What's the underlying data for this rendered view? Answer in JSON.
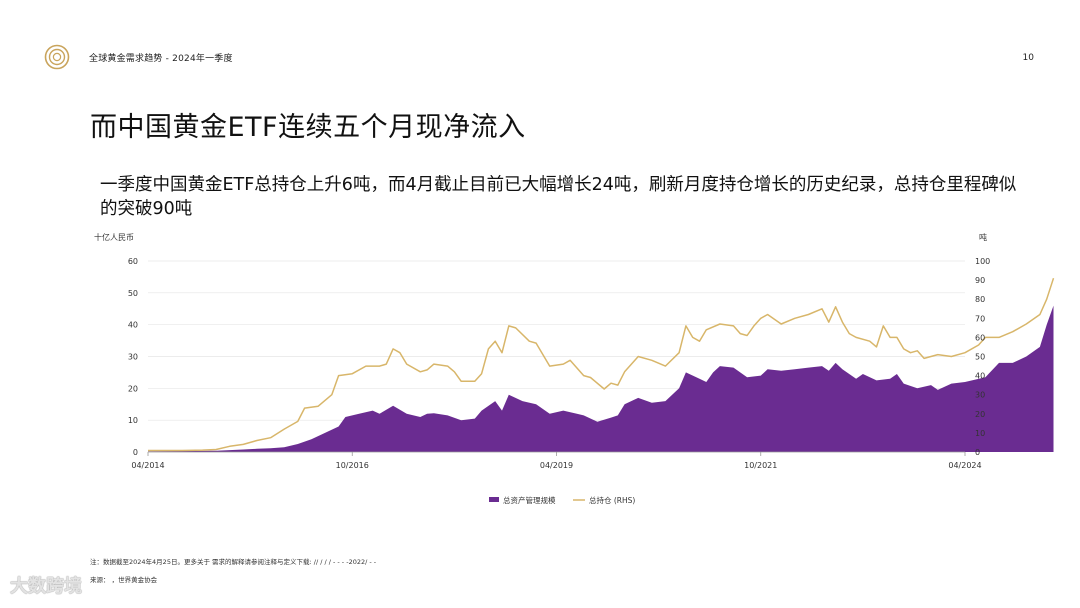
{
  "header": {
    "title": "全球黄金需求趋势 - 2024年一季度",
    "page_number": "10"
  },
  "slide": {
    "title": "而中国黄金ETF连续五个月现净流入",
    "subtitle": "一季度中国黄金ETF总持仓上升6吨，而4月截止目前已大幅增长24吨，刷新月度持仓增长的历史纪录，总持仓里程碑似的突破90吨"
  },
  "colors": {
    "aum": "#6a2c91",
    "holdings": "#d8b66a",
    "axis": "#999999",
    "grid": "#e6e6e6",
    "gold_logo": "#c9a45c"
  },
  "chart_data": {
    "type": "area",
    "left_unit": "十亿人民币",
    "right_unit": "吨",
    "ylim_left": [
      0,
      60
    ],
    "ylim_right": [
      0,
      100
    ],
    "yticks_left": [
      0,
      10,
      20,
      30,
      40,
      50,
      60
    ],
    "yticks_right": [
      0,
      10,
      20,
      30,
      40,
      50,
      60,
      70,
      80,
      90,
      100
    ],
    "x_tick_labels": [
      "04/2014",
      "10/2016",
      "04/2019",
      "10/2021",
      "04/2024"
    ],
    "x_tick_months": [
      0,
      30,
      60,
      90,
      120
    ],
    "grid": "horizontal",
    "legend_position": "bottom",
    "series": [
      {
        "name": "总资产管理规模",
        "axis": "left",
        "style": "area",
        "points": [
          [
            0,
            0.2
          ],
          [
            5,
            0.3
          ],
          [
            10,
            0.4
          ],
          [
            14,
            0.8
          ],
          [
            16,
            1
          ],
          [
            18,
            1.2
          ],
          [
            20,
            1.5
          ],
          [
            22,
            2.5
          ],
          [
            24,
            4
          ],
          [
            26,
            6
          ],
          [
            28,
            8
          ],
          [
            29,
            11
          ],
          [
            31,
            12
          ],
          [
            33,
            13
          ],
          [
            34,
            12
          ],
          [
            36,
            14.5
          ],
          [
            38,
            12
          ],
          [
            40,
            11
          ],
          [
            41,
            12
          ],
          [
            42,
            12.2
          ],
          [
            44,
            11.5
          ],
          [
            46,
            10
          ],
          [
            48,
            10.5
          ],
          [
            49,
            13
          ],
          [
            51,
            16
          ],
          [
            52,
            13
          ],
          [
            53,
            18
          ],
          [
            55,
            16
          ],
          [
            57,
            15
          ],
          [
            59,
            12
          ],
          [
            61,
            13
          ],
          [
            63,
            12
          ],
          [
            64,
            11.5
          ],
          [
            66,
            9.5
          ],
          [
            68,
            10.8
          ],
          [
            69,
            11.5
          ],
          [
            70,
            15
          ],
          [
            72,
            17
          ],
          [
            74,
            15.5
          ],
          [
            76,
            16
          ],
          [
            78,
            20
          ],
          [
            79,
            25
          ],
          [
            81,
            23
          ],
          [
            82,
            22
          ],
          [
            83,
            25
          ],
          [
            84,
            27
          ],
          [
            86,
            26.5
          ],
          [
            88,
            23.5
          ],
          [
            90,
            24
          ],
          [
            91,
            26
          ],
          [
            93,
            25.5
          ],
          [
            95,
            26
          ],
          [
            97,
            26.5
          ],
          [
            99,
            27
          ],
          [
            100,
            25.5
          ],
          [
            101,
            28
          ],
          [
            102,
            26
          ],
          [
            104,
            23
          ],
          [
            105,
            24.5
          ],
          [
            107,
            22.5
          ],
          [
            109,
            23
          ],
          [
            110,
            24.5
          ],
          [
            111,
            21.5
          ],
          [
            113,
            20
          ],
          [
            115,
            21
          ],
          [
            116,
            19.5
          ],
          [
            118,
            21.5
          ],
          [
            120,
            22
          ],
          [
            123,
            23.5
          ],
          [
            125,
            28
          ],
          [
            127,
            28
          ],
          [
            129,
            30
          ],
          [
            131,
            33
          ],
          [
            132,
            40
          ],
          [
            133,
            46
          ]
        ]
      },
      {
        "name": "总持仓 (RHS)",
        "axis": "right",
        "style": "line",
        "points": [
          [
            0,
            0.8
          ],
          [
            5,
            0.8
          ],
          [
            8,
            1
          ],
          [
            10,
            1.3
          ],
          [
            12,
            3
          ],
          [
            14,
            4
          ],
          [
            16,
            6
          ],
          [
            18,
            7.5
          ],
          [
            20,
            12
          ],
          [
            22,
            16
          ],
          [
            23,
            23
          ],
          [
            25,
            24
          ],
          [
            27,
            30
          ],
          [
            28,
            40
          ],
          [
            30,
            41
          ],
          [
            32,
            45
          ],
          [
            34,
            45
          ],
          [
            35,
            46
          ],
          [
            36,
            54
          ],
          [
            37,
            52
          ],
          [
            38,
            46
          ],
          [
            40,
            42
          ],
          [
            41,
            43
          ],
          [
            42,
            46
          ],
          [
            44,
            45
          ],
          [
            45,
            42
          ],
          [
            46,
            37
          ],
          [
            48,
            37
          ],
          [
            49,
            41
          ],
          [
            50,
            54
          ],
          [
            51,
            58
          ],
          [
            52,
            52
          ],
          [
            53,
            66
          ],
          [
            54,
            65
          ],
          [
            56,
            58
          ],
          [
            57,
            57
          ],
          [
            59,
            45
          ],
          [
            61,
            46
          ],
          [
            62,
            48
          ],
          [
            64,
            40
          ],
          [
            65,
            39
          ],
          [
            67,
            33
          ],
          [
            68,
            36
          ],
          [
            69,
            35
          ],
          [
            70,
            42
          ],
          [
            72,
            50
          ],
          [
            74,
            48
          ],
          [
            76,
            45
          ],
          [
            78,
            52
          ],
          [
            79,
            66
          ],
          [
            80,
            60
          ],
          [
            81,
            58
          ],
          [
            82,
            64
          ],
          [
            84,
            67
          ],
          [
            86,
            66
          ],
          [
            87,
            62
          ],
          [
            88,
            61
          ],
          [
            89,
            66
          ],
          [
            90,
            70
          ],
          [
            91,
            72
          ],
          [
            93,
            67
          ],
          [
            95,
            70
          ],
          [
            97,
            72
          ],
          [
            99,
            75
          ],
          [
            100,
            68
          ],
          [
            101,
            76
          ],
          [
            102,
            68
          ],
          [
            103,
            62
          ],
          [
            104,
            60
          ],
          [
            106,
            58
          ],
          [
            107,
            55
          ],
          [
            108,
            66
          ],
          [
            109,
            60
          ],
          [
            110,
            60
          ],
          [
            111,
            54
          ],
          [
            112,
            52
          ],
          [
            113,
            53
          ],
          [
            114,
            49
          ],
          [
            116,
            51
          ],
          [
            118,
            50
          ],
          [
            120,
            52
          ],
          [
            122,
            56
          ],
          [
            123,
            60
          ],
          [
            125,
            60
          ],
          [
            127,
            63
          ],
          [
            129,
            67
          ],
          [
            131,
            72
          ],
          [
            132,
            80
          ],
          [
            133,
            91
          ]
        ]
      }
    ]
  },
  "footnote": {
    "note": "注：数据截至2024年4月25日。更多关于   需求的解释请参阅注释与定义下载: //                /           /            /     -        -           -       -2022/     -      -",
    "source": "来源：    ，世界黄金协会"
  },
  "watermark": {
    "text": "大数跨境"
  }
}
